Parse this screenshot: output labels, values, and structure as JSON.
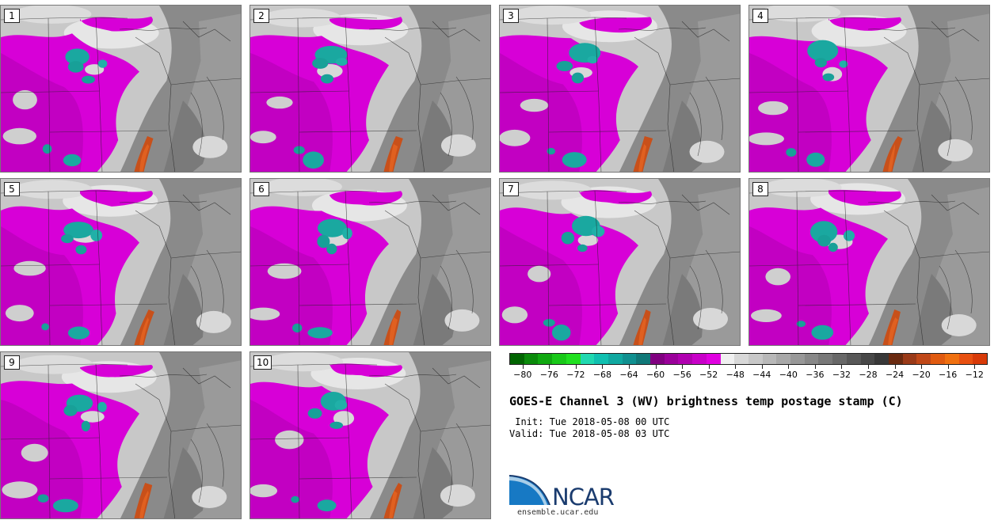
{
  "stamps": [
    {
      "label": "1"
    },
    {
      "label": "2"
    },
    {
      "label": "3"
    },
    {
      "label": "4"
    },
    {
      "label": "5"
    },
    {
      "label": "6"
    },
    {
      "label": "7"
    },
    {
      "label": "8"
    },
    {
      "label": "9"
    },
    {
      "label": "10"
    }
  ],
  "colorbar": {
    "colors": [
      "#006400",
      "#0a8a0a",
      "#10a810",
      "#18c818",
      "#20e020",
      "#20d8b0",
      "#10c0b0",
      "#10a8a0",
      "#109090",
      "#107878",
      "#800080",
      "#9a009a",
      "#b000b0",
      "#c800c8",
      "#e000e0",
      "#f0f0f0",
      "#d8d8d8",
      "#c8c8c8",
      "#b8b8b8",
      "#a8a8a8",
      "#989898",
      "#888888",
      "#787878",
      "#686868",
      "#585858",
      "#484848",
      "#383838",
      "#6a2a10",
      "#9a3a18",
      "#c04818",
      "#e05a10",
      "#f07010",
      "#e85010",
      "#d83a08"
    ],
    "tick_values": [
      "−80",
      "−76",
      "−72",
      "−68",
      "−64",
      "−60",
      "−56",
      "−52",
      "−48",
      "−44",
      "−40",
      "−36",
      "−32",
      "−28",
      "−24",
      "−20",
      "−16",
      "−12"
    ]
  },
  "title": "GOES-E Channel 3 (WV) brightness temp postage stamp (C)",
  "init_line": " Init: Tue 2018-05-08 00 UTC",
  "valid_line": "Valid: Tue 2018-05-08 03 UTC",
  "logo": {
    "name": "NCAR",
    "url": "ensemble.ucar.edu"
  }
}
